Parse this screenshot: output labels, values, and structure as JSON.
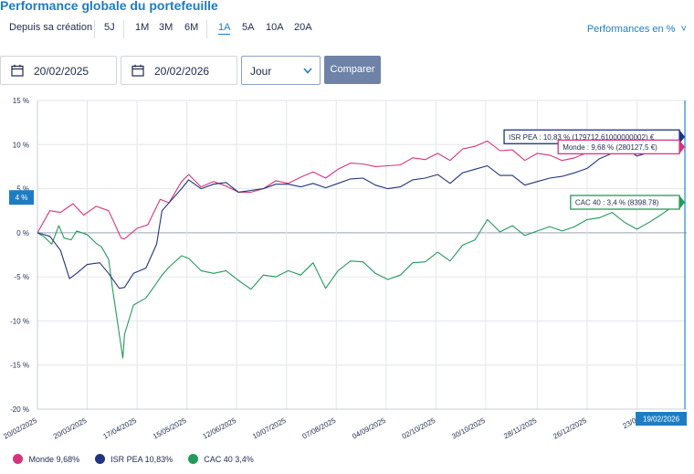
{
  "title": "Performance globale du portefeuille",
  "periods": {
    "since": "Depuis sa création",
    "items": [
      "5J",
      "1M",
      "3M",
      "6M",
      "1A",
      "5A",
      "10A",
      "20A"
    ],
    "active": "1A"
  },
  "perf_mode": "Performances en %",
  "filters": {
    "start_date": "20/02/2025",
    "end_date": "20/02/2026",
    "granularity": "Jour",
    "compare_label": "Comparer"
  },
  "colors": {
    "accent": "#1d7dc4",
    "monde": "#d6357e",
    "isr_pea": "#21357f",
    "cac40": "#229b5a",
    "cursor": "#3a8fd1"
  },
  "chart_data": {
    "type": "line",
    "ylim": [
      -20,
      15
    ],
    "yticks": [
      15,
      10,
      5,
      0,
      -5,
      -10,
      -15,
      -20
    ],
    "ytick_labels": [
      "15 %",
      "10 %",
      "5 %",
      "0 %",
      "-5 %",
      "-10 %",
      "-15 %",
      "-20 %"
    ],
    "xlim": [
      "2025-02-20",
      "2026-02-20"
    ],
    "xticks": [
      "2025-02-20",
      "2025-03-20",
      "2025-04-17",
      "2025-05-15",
      "2025-06-12",
      "2025-07-10",
      "2025-08-07",
      "2025-09-04",
      "2025-10-02",
      "2025-10-30",
      "2025-11-28",
      "2025-12-26",
      "2026-01-23"
    ],
    "xtick_labels": [
      "20/02/2025",
      "20/03/2025",
      "17/04/2025",
      "15/05/2025",
      "12/06/2025",
      "10/07/2025",
      "07/08/2025",
      "04/09/2025",
      "02/10/2025",
      "30/10/2025",
      "28/11/2025",
      "26/12/2025",
      "23/0"
    ],
    "grid": true,
    "y_cursor_label": "4 %",
    "x_cursor_label": "19/02/2026",
    "series": [
      {
        "name": "Monde",
        "legend_value": "9,68%",
        "tooltip": "Monde : 9,68 % (280127,5 €)",
        "points": [
          [
            "2025-02-20",
            0
          ],
          [
            "2025-02-27",
            2.5
          ],
          [
            "2025-03-05",
            2.3
          ],
          [
            "2025-03-12",
            3.3
          ],
          [
            "2025-03-18",
            2
          ],
          [
            "2025-03-25",
            3
          ],
          [
            "2025-04-01",
            2.5
          ],
          [
            "2025-04-04",
            1.2
          ],
          [
            "2025-04-08",
            -0.6
          ],
          [
            "2025-04-10",
            -0.7
          ],
          [
            "2025-04-17",
            0.5
          ],
          [
            "2025-04-23",
            0.9
          ],
          [
            "2025-04-30",
            3.8
          ],
          [
            "2025-05-05",
            3.4
          ],
          [
            "2025-05-12",
            5.8
          ],
          [
            "2025-05-16",
            6.6
          ],
          [
            "2025-05-23",
            5.2
          ],
          [
            "2025-05-30",
            5.8
          ],
          [
            "2025-06-06",
            5.3
          ],
          [
            "2025-06-13",
            4.6
          ],
          [
            "2025-06-20",
            4.6
          ],
          [
            "2025-06-27",
            5
          ],
          [
            "2025-07-04",
            5.9
          ],
          [
            "2025-07-11",
            5.6
          ],
          [
            "2025-07-18",
            6.3
          ],
          [
            "2025-07-25",
            6.9
          ],
          [
            "2025-08-01",
            6.2
          ],
          [
            "2025-08-08",
            7.2
          ],
          [
            "2025-08-15",
            7.9
          ],
          [
            "2025-08-22",
            7.8
          ],
          [
            "2025-08-29",
            7.5
          ],
          [
            "2025-09-05",
            7.6
          ],
          [
            "2025-09-12",
            7.7
          ],
          [
            "2025-09-19",
            8.5
          ],
          [
            "2025-09-26",
            8.3
          ],
          [
            "2025-10-03",
            9
          ],
          [
            "2025-10-10",
            8.2
          ],
          [
            "2025-10-17",
            9.5
          ],
          [
            "2025-10-24",
            9.8
          ],
          [
            "2025-10-31",
            10.4
          ],
          [
            "2025-11-07",
            9.3
          ],
          [
            "2025-11-14",
            9.4
          ],
          [
            "2025-11-21",
            8.2
          ],
          [
            "2025-11-28",
            9
          ],
          [
            "2025-12-05",
            8.8
          ],
          [
            "2025-12-12",
            8.2
          ],
          [
            "2025-12-19",
            8.5
          ],
          [
            "2025-12-26",
            9.1
          ],
          [
            "2026-01-02",
            9.9
          ],
          [
            "2026-01-09",
            10
          ],
          [
            "2026-01-16",
            10.6
          ],
          [
            "2026-01-23",
            9.8
          ],
          [
            "2026-01-30",
            9.8
          ],
          [
            "2026-02-06",
            9.5
          ],
          [
            "2026-02-13",
            10
          ],
          [
            "2026-02-19",
            9.68
          ]
        ]
      },
      {
        "name": "ISR PEA",
        "legend_value": "10,83%",
        "tooltip": "ISR PEA : 10,83 % (179712.61000000002) €",
        "points": [
          [
            "2025-02-20",
            0
          ],
          [
            "2025-02-27",
            -0.4
          ],
          [
            "2025-03-05",
            -2
          ],
          [
            "2025-03-10",
            -5.2
          ],
          [
            "2025-03-14",
            -4.6
          ],
          [
            "2025-03-20",
            -3.6
          ],
          [
            "2025-03-27",
            -3.4
          ],
          [
            "2025-04-01",
            -4.6
          ],
          [
            "2025-04-07",
            -6.3
          ],
          [
            "2025-04-10",
            -6.2
          ],
          [
            "2025-04-15",
            -4.6
          ],
          [
            "2025-04-22",
            -4
          ],
          [
            "2025-04-28",
            -1.3
          ],
          [
            "2025-05-01",
            2.5
          ],
          [
            "2025-05-05",
            3.4
          ],
          [
            "2025-05-12",
            5
          ],
          [
            "2025-05-16",
            6
          ],
          [
            "2025-05-23",
            5
          ],
          [
            "2025-05-30",
            5.5
          ],
          [
            "2025-06-06",
            5.7
          ],
          [
            "2025-06-13",
            4.6
          ],
          [
            "2025-06-20",
            4.8
          ],
          [
            "2025-06-27",
            5
          ],
          [
            "2025-07-04",
            5.5
          ],
          [
            "2025-07-11",
            5.5
          ],
          [
            "2025-07-18",
            5.2
          ],
          [
            "2025-07-25",
            5.6
          ],
          [
            "2025-08-01",
            5.1
          ],
          [
            "2025-08-08",
            5.6
          ],
          [
            "2025-08-15",
            6.1
          ],
          [
            "2025-08-22",
            6.2
          ],
          [
            "2025-08-29",
            5.4
          ],
          [
            "2025-09-05",
            5
          ],
          [
            "2025-09-12",
            5.2
          ],
          [
            "2025-09-19",
            6
          ],
          [
            "2025-09-26",
            6.2
          ],
          [
            "2025-10-03",
            6.6
          ],
          [
            "2025-10-10",
            5.6
          ],
          [
            "2025-10-17",
            6.8
          ],
          [
            "2025-10-24",
            7.2
          ],
          [
            "2025-10-31",
            7.6
          ],
          [
            "2025-11-07",
            6.5
          ],
          [
            "2025-11-14",
            6.5
          ],
          [
            "2025-11-21",
            5.4
          ],
          [
            "2025-11-28",
            5.8
          ],
          [
            "2025-12-05",
            6.2
          ],
          [
            "2025-12-12",
            6.4
          ],
          [
            "2025-12-19",
            6.8
          ],
          [
            "2025-12-26",
            7.3
          ],
          [
            "2026-01-02",
            8.4
          ],
          [
            "2026-01-09",
            9
          ],
          [
            "2026-01-16",
            9.6
          ],
          [
            "2026-01-23",
            8.7
          ],
          [
            "2026-01-30",
            9.1
          ],
          [
            "2026-02-06",
            9.9
          ],
          [
            "2026-02-13",
            10.4
          ],
          [
            "2026-02-19",
            10.83
          ]
        ]
      },
      {
        "name": "CAC 40",
        "legend_value": "3,4%",
        "tooltip": "CAC 40 : 3,4 % (8398.78)",
        "points": [
          [
            "2025-02-20",
            0
          ],
          [
            "2025-02-24",
            -0.5
          ],
          [
            "2025-02-28",
            -1.3
          ],
          [
            "2025-03-04",
            0.8
          ],
          [
            "2025-03-07",
            -0.6
          ],
          [
            "2025-03-11",
            -0.8
          ],
          [
            "2025-03-14",
            0.2
          ],
          [
            "2025-03-20",
            -0.2
          ],
          [
            "2025-03-25",
            -1.2
          ],
          [
            "2025-03-28",
            -1.6
          ],
          [
            "2025-04-01",
            -3
          ],
          [
            "2025-04-03",
            -6
          ],
          [
            "2025-04-07",
            -11.5
          ],
          [
            "2025-04-09",
            -14.2
          ],
          [
            "2025-04-10",
            -11.5
          ],
          [
            "2025-04-15",
            -8.2
          ],
          [
            "2025-04-22",
            -7.4
          ],
          [
            "2025-04-28",
            -5.7
          ],
          [
            "2025-05-01",
            -4.8
          ],
          [
            "2025-05-05",
            -3.9
          ],
          [
            "2025-05-12",
            -2.6
          ],
          [
            "2025-05-16",
            -2.9
          ],
          [
            "2025-05-23",
            -4.3
          ],
          [
            "2025-05-30",
            -4.6
          ],
          [
            "2025-06-06",
            -4.3
          ],
          [
            "2025-06-13",
            -5.4
          ],
          [
            "2025-06-20",
            -6.4
          ],
          [
            "2025-06-27",
            -4.8
          ],
          [
            "2025-07-04",
            -5
          ],
          [
            "2025-07-11",
            -4.3
          ],
          [
            "2025-07-18",
            -4.8
          ],
          [
            "2025-07-25",
            -3.4
          ],
          [
            "2025-08-01",
            -6.3
          ],
          [
            "2025-08-08",
            -4.3
          ],
          [
            "2025-08-15",
            -3.2
          ],
          [
            "2025-08-22",
            -3.3
          ],
          [
            "2025-08-29",
            -4.6
          ],
          [
            "2025-09-05",
            -5.3
          ],
          [
            "2025-09-12",
            -4.8
          ],
          [
            "2025-09-19",
            -3.4
          ],
          [
            "2025-09-26",
            -3.3
          ],
          [
            "2025-10-03",
            -2.2
          ],
          [
            "2025-10-10",
            -3.2
          ],
          [
            "2025-10-17",
            -1.4
          ],
          [
            "2025-10-24",
            -0.8
          ],
          [
            "2025-10-31",
            1.5
          ],
          [
            "2025-11-07",
            0.1
          ],
          [
            "2025-11-14",
            0.8
          ],
          [
            "2025-11-21",
            -0.3
          ],
          [
            "2025-11-28",
            0.2
          ],
          [
            "2025-12-05",
            0.7
          ],
          [
            "2025-12-12",
            0.2
          ],
          [
            "2025-12-19",
            0.7
          ],
          [
            "2025-12-26",
            1.5
          ],
          [
            "2026-01-02",
            1.7
          ],
          [
            "2026-01-09",
            2.3
          ],
          [
            "2026-01-16",
            1.2
          ],
          [
            "2026-01-23",
            0.4
          ],
          [
            "2026-01-30",
            1.2
          ],
          [
            "2026-02-06",
            2.1
          ],
          [
            "2026-02-13",
            3.1
          ],
          [
            "2026-02-19",
            3.4
          ]
        ]
      }
    ]
  }
}
